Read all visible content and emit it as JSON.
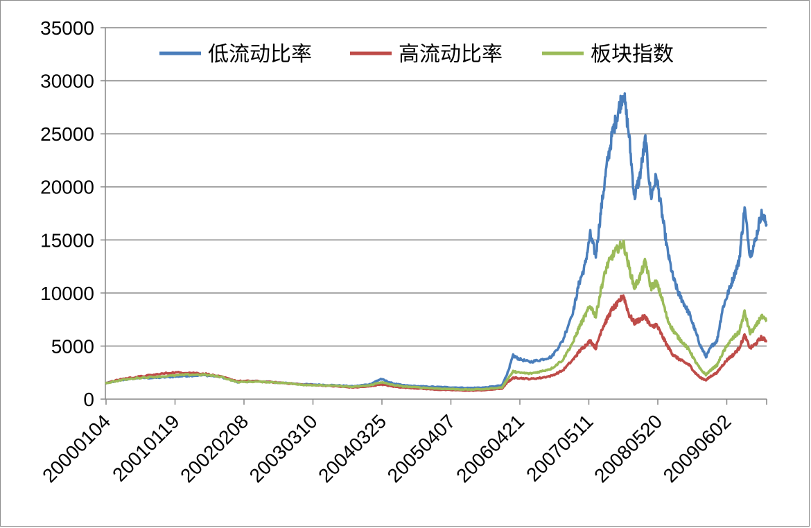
{
  "chart_data": {
    "type": "line",
    "title": "",
    "xlabel": "",
    "ylabel": "",
    "ylim": [
      0,
      35000
    ],
    "yticks": [
      0,
      5000,
      10000,
      15000,
      20000,
      25000,
      30000,
      35000
    ],
    "ytick_labels": [
      "0",
      "5000",
      "10000",
      "15000",
      "20000",
      "25000",
      "30000",
      "35000"
    ],
    "x_range_months": 120,
    "xtick_labels": [
      "20000104",
      "20010119",
      "20020208",
      "20030310",
      "20040325",
      "20050407",
      "20060421",
      "20070511",
      "20080520",
      "20090602"
    ],
    "grid": "horizontal",
    "legend_position": "top",
    "series": [
      {
        "name": "低流动比率",
        "color": "#4a7ebb",
        "points": [
          [
            0,
            1500
          ],
          [
            3,
            1800
          ],
          [
            6,
            2000
          ],
          [
            9,
            2000
          ],
          [
            12,
            2100
          ],
          [
            15,
            2200
          ],
          [
            18,
            2250
          ],
          [
            21,
            2100
          ],
          [
            24,
            1600
          ],
          [
            27,
            1700
          ],
          [
            30,
            1600
          ],
          [
            33,
            1500
          ],
          [
            36,
            1400
          ],
          [
            39,
            1350
          ],
          [
            42,
            1300
          ],
          [
            45,
            1200
          ],
          [
            48,
            1400
          ],
          [
            50,
            1900
          ],
          [
            52,
            1500
          ],
          [
            54,
            1300
          ],
          [
            57,
            1200
          ],
          [
            60,
            1150
          ],
          [
            63,
            1100
          ],
          [
            66,
            1050
          ],
          [
            69,
            1100
          ],
          [
            72,
            1300
          ],
          [
            73,
            2500
          ],
          [
            74,
            4100
          ],
          [
            75,
            3800
          ],
          [
            77,
            3500
          ],
          [
            79,
            3700
          ],
          [
            81,
            4000
          ],
          [
            83,
            5500
          ],
          [
            85,
            8500
          ],
          [
            86,
            11000
          ],
          [
            87,
            12500
          ],
          [
            88,
            15500
          ],
          [
            89,
            13500
          ],
          [
            90,
            18000
          ],
          [
            91,
            22000
          ],
          [
            92,
            25000
          ],
          [
            93,
            27000
          ],
          [
            94,
            29000
          ],
          [
            95,
            25000
          ],
          [
            96,
            19000
          ],
          [
            97,
            21000
          ],
          [
            98,
            24500
          ],
          [
            99,
            19000
          ],
          [
            100,
            21000
          ],
          [
            101,
            17500
          ],
          [
            102,
            14000
          ],
          [
            103,
            11500
          ],
          [
            104,
            10000
          ],
          [
            105,
            9000
          ],
          [
            106,
            8000
          ],
          [
            107,
            6500
          ],
          [
            108,
            5000
          ],
          [
            109,
            4000
          ],
          [
            110,
            5000
          ],
          [
            111,
            5500
          ],
          [
            112,
            8500
          ],
          [
            113,
            10000
          ],
          [
            114,
            11500
          ],
          [
            115,
            13000
          ],
          [
            116,
            18000
          ],
          [
            117,
            13500
          ],
          [
            118,
            15000
          ],
          [
            119,
            17500
          ],
          [
            120,
            16500
          ]
        ]
      },
      {
        "name": "高流动比率",
        "color": "#be4b48",
        "points": [
          [
            0,
            1500
          ],
          [
            3,
            1900
          ],
          [
            6,
            2100
          ],
          [
            9,
            2300
          ],
          [
            12,
            2500
          ],
          [
            15,
            2500
          ],
          [
            18,
            2400
          ],
          [
            21,
            2100
          ],
          [
            24,
            1700
          ],
          [
            27,
            1700
          ],
          [
            30,
            1600
          ],
          [
            33,
            1500
          ],
          [
            36,
            1350
          ],
          [
            39,
            1300
          ],
          [
            42,
            1200
          ],
          [
            45,
            1100
          ],
          [
            48,
            1200
          ],
          [
            50,
            1400
          ],
          [
            52,
            1200
          ],
          [
            54,
            1100
          ],
          [
            57,
            1000
          ],
          [
            60,
            900
          ],
          [
            63,
            850
          ],
          [
            66,
            800
          ],
          [
            69,
            850
          ],
          [
            72,
            1000
          ],
          [
            73,
            1600
          ],
          [
            74,
            2000
          ],
          [
            75,
            2000
          ],
          [
            77,
            1900
          ],
          [
            79,
            2000
          ],
          [
            81,
            2200
          ],
          [
            83,
            2700
          ],
          [
            85,
            3800
          ],
          [
            86,
            4500
          ],
          [
            87,
            5000
          ],
          [
            88,
            5500
          ],
          [
            89,
            4800
          ],
          [
            90,
            6500
          ],
          [
            91,
            7500
          ],
          [
            92,
            8500
          ],
          [
            93,
            9000
          ],
          [
            94,
            9800
          ],
          [
            95,
            8000
          ],
          [
            96,
            7200
          ],
          [
            97,
            7500
          ],
          [
            98,
            7800
          ],
          [
            99,
            6800
          ],
          [
            100,
            7000
          ],
          [
            101,
            6000
          ],
          [
            102,
            5000
          ],
          [
            103,
            4200
          ],
          [
            104,
            3800
          ],
          [
            105,
            3500
          ],
          [
            106,
            3200
          ],
          [
            107,
            2500
          ],
          [
            108,
            2000
          ],
          [
            109,
            1800
          ],
          [
            110,
            2200
          ],
          [
            111,
            2500
          ],
          [
            112,
            3200
          ],
          [
            113,
            3800
          ],
          [
            114,
            4200
          ],
          [
            115,
            4800
          ],
          [
            116,
            6000
          ],
          [
            117,
            4800
          ],
          [
            118,
            5200
          ],
          [
            119,
            5800
          ],
          [
            120,
            5500
          ]
        ]
      },
      {
        "name": "板块指数",
        "color": "#9bbb59",
        "points": [
          [
            0,
            1500
          ],
          [
            3,
            1800
          ],
          [
            6,
            2000
          ],
          [
            9,
            2100
          ],
          [
            12,
            2200
          ],
          [
            15,
            2300
          ],
          [
            18,
            2300
          ],
          [
            21,
            2100
          ],
          [
            24,
            1600
          ],
          [
            27,
            1650
          ],
          [
            30,
            1600
          ],
          [
            33,
            1500
          ],
          [
            36,
            1350
          ],
          [
            39,
            1300
          ],
          [
            42,
            1250
          ],
          [
            45,
            1150
          ],
          [
            48,
            1300
          ],
          [
            50,
            1600
          ],
          [
            52,
            1350
          ],
          [
            54,
            1200
          ],
          [
            57,
            1100
          ],
          [
            60,
            1000
          ],
          [
            63,
            950
          ],
          [
            66,
            900
          ],
          [
            69,
            950
          ],
          [
            72,
            1100
          ],
          [
            73,
            1900
          ],
          [
            74,
            2600
          ],
          [
            75,
            2500
          ],
          [
            77,
            2400
          ],
          [
            79,
            2600
          ],
          [
            81,
            2900
          ],
          [
            83,
            3700
          ],
          [
            85,
            5500
          ],
          [
            86,
            6800
          ],
          [
            87,
            7800
          ],
          [
            88,
            8800
          ],
          [
            89,
            7800
          ],
          [
            90,
            10500
          ],
          [
            91,
            12500
          ],
          [
            92,
            13500
          ],
          [
            93,
            14200
          ],
          [
            94,
            14700
          ],
          [
            95,
            12500
          ],
          [
            96,
            10500
          ],
          [
            97,
            11500
          ],
          [
            98,
            13000
          ],
          [
            99,
            10500
          ],
          [
            100,
            11000
          ],
          [
            101,
            9500
          ],
          [
            102,
            7500
          ],
          [
            103,
            6500
          ],
          [
            104,
            5800
          ],
          [
            105,
            5200
          ],
          [
            106,
            4600
          ],
          [
            107,
            3600
          ],
          [
            108,
            2800
          ],
          [
            109,
            2300
          ],
          [
            110,
            2800
          ],
          [
            111,
            3200
          ],
          [
            112,
            4300
          ],
          [
            113,
            5200
          ],
          [
            114,
            5800
          ],
          [
            115,
            6300
          ],
          [
            116,
            8200
          ],
          [
            117,
            6200
          ],
          [
            118,
            6800
          ],
          [
            119,
            7800
          ],
          [
            120,
            7300
          ]
        ]
      }
    ]
  }
}
